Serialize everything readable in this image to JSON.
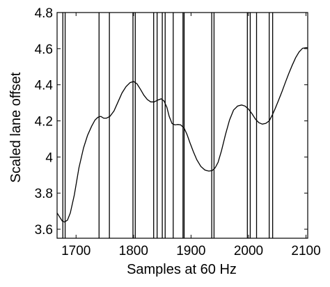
{
  "chart_data": {
    "type": "line",
    "title": "",
    "xlabel": "Samples at 60 Hz",
    "ylabel": "Scaled lane offset",
    "xlim": [
      1667,
      2103
    ],
    "ylim": [
      3.55,
      4.8
    ],
    "xticks": [
      1700,
      1800,
      1900,
      2000,
      2100
    ],
    "xtick_labels": [
      "1700",
      "1800",
      "1900",
      "2000",
      "2100"
    ],
    "yticks": [
      3.6,
      3.8,
      4.0,
      4.2,
      4.4,
      4.6,
      4.8
    ],
    "ytick_labels": [
      "3.6",
      "3.8",
      "4",
      "4.2",
      "4.4",
      "4.6",
      "4.8"
    ],
    "grid": false,
    "legend": "none",
    "line_color": "#000000",
    "series": [
      {
        "x": [
          1667,
          1672,
          1676,
          1680,
          1685,
          1690,
          1697,
          1705,
          1713,
          1720,
          1727,
          1733,
          1738,
          1743,
          1748,
          1753,
          1759,
          1766,
          1773,
          1780,
          1787,
          1794,
          1800,
          1806,
          1812,
          1818,
          1824,
          1830,
          1836,
          1842,
          1848,
          1853,
          1858,
          1862,
          1867,
          1872,
          1877,
          1882,
          1888,
          1893,
          1898,
          1904,
          1910,
          1917,
          1924,
          1931,
          1937,
          1942,
          1947,
          1953,
          1960,
          1967,
          1974,
          1981,
          1988,
          1994,
          2000,
          2006,
          2012,
          2018,
          2024,
          2030,
          2036,
          2041,
          2046,
          2052,
          2058,
          2064,
          2070,
          2076,
          2082,
          2088,
          2094,
          2100,
          2103
        ],
        "y": [
          3.69,
          3.665,
          3.645,
          3.64,
          3.65,
          3.69,
          3.79,
          3.94,
          4.05,
          4.12,
          4.17,
          4.205,
          4.22,
          4.225,
          4.215,
          4.215,
          4.225,
          4.255,
          4.305,
          4.355,
          4.39,
          4.412,
          4.418,
          4.405,
          4.375,
          4.342,
          4.318,
          4.305,
          4.305,
          4.315,
          4.322,
          4.31,
          4.275,
          4.225,
          4.185,
          4.178,
          4.18,
          4.178,
          4.16,
          4.125,
          4.08,
          4.03,
          3.985,
          3.948,
          3.928,
          3.922,
          3.925,
          3.94,
          3.97,
          4.035,
          4.125,
          4.205,
          4.26,
          4.282,
          4.288,
          4.282,
          4.265,
          4.24,
          4.21,
          4.19,
          4.182,
          4.186,
          4.2,
          4.23,
          4.265,
          4.312,
          4.36,
          4.412,
          4.462,
          4.508,
          4.55,
          4.582,
          4.602,
          4.605,
          4.605
        ]
      }
    ],
    "vertical_lines_x": [
      1677,
      1681,
      1740,
      1758,
      1799,
      1803,
      1835,
      1841,
      1850,
      1855,
      1869,
      1886,
      1888,
      1936,
      1940,
      1998,
      2003,
      2014,
      2036,
      2042
    ]
  }
}
